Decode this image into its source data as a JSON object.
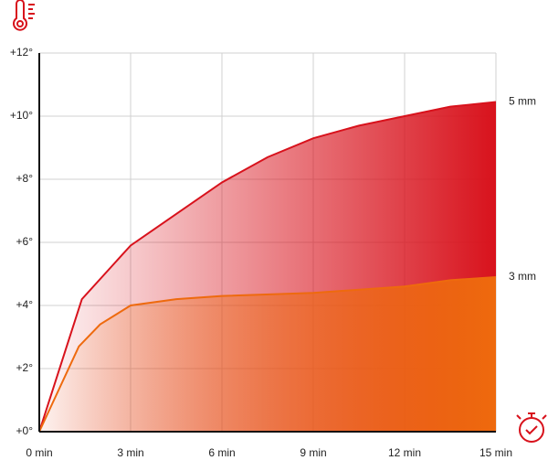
{
  "chart_data": {
    "type": "area",
    "xlim": [
      0,
      15
    ],
    "xticks": [
      {
        "value": 0,
        "label": "0 min"
      },
      {
        "value": 3,
        "label": "3 min"
      },
      {
        "value": 6,
        "label": "6 min"
      },
      {
        "value": 9,
        "label": "9 min"
      },
      {
        "value": 12,
        "label": "12 min"
      },
      {
        "value": 15,
        "label": "15 min"
      }
    ],
    "ylim": [
      0,
      12
    ],
    "yticks": [
      {
        "value": 0,
        "label": "+0°"
      },
      {
        "value": 2,
        "label": "+2°"
      },
      {
        "value": 4,
        "label": "+4°"
      },
      {
        "value": 6,
        "label": "+6°"
      },
      {
        "value": 8,
        "label": "+8°"
      },
      {
        "value": 10,
        "label": "+10°"
      },
      {
        "value": 12,
        "label": "+12°"
      }
    ],
    "grid": true,
    "series": [
      {
        "name": "5 mm",
        "color": "#d8121c",
        "x": [
          0,
          1.4,
          3,
          4.5,
          6,
          7.5,
          9,
          10.5,
          12,
          13.5,
          15
        ],
        "values": [
          0,
          4.2,
          5.9,
          6.9,
          7.9,
          8.7,
          9.3,
          9.7,
          10,
          10.3,
          10.45
        ]
      },
      {
        "name": "3 mm",
        "color": "#ee6a0e",
        "x": [
          0,
          1.3,
          2,
          3,
          4.5,
          6,
          9,
          12,
          13.5,
          15
        ],
        "values": [
          0,
          2.7,
          3.4,
          4,
          4.2,
          4.3,
          4.4,
          4.6,
          4.8,
          4.9
        ]
      }
    ]
  }
}
